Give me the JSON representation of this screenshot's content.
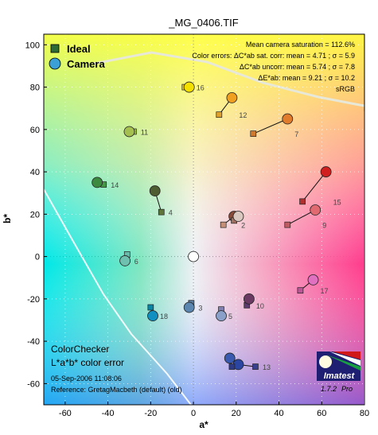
{
  "chart_data": {
    "type": "scatter",
    "title": "_MG_0406.TIF",
    "xlabel": "a*",
    "ylabel": "b*",
    "xlim": [
      -70,
      80
    ],
    "ylim": [
      -70,
      105
    ],
    "xticks": [
      -60,
      -40,
      -20,
      0,
      20,
      40,
      60,
      80
    ],
    "yticks": [
      -60,
      -40,
      -20,
      0,
      20,
      40,
      60,
      80,
      100
    ],
    "xtick_labels": [
      "-60",
      "-40",
      "-20",
      "0",
      "20",
      "40",
      "60",
      "80"
    ],
    "ytick_labels": [
      "-60",
      "-40",
      "-20",
      "0",
      "20",
      "40",
      "60",
      "80",
      "100"
    ],
    "grid": true,
    "legend_position": "top-left",
    "legend": [
      {
        "name": "Ideal",
        "marker": "square",
        "color": "#2e6b35"
      },
      {
        "name": "Camera",
        "marker": "circle",
        "color": "#3aa0d6"
      }
    ],
    "stats_lines": [
      "Mean camera saturation = 112.6%",
      "Color errors:  ΔC*ab sat. corr:  mean = 4.71  ;  σ = 5.9",
      "ΔC*ab uncorr:  mean = 5.74  ;  σ = 7.8",
      "ΔE*ab:  mean = 9.21  ;  σ = 10.2",
      "sRGB"
    ],
    "bottom_title_1": "ColorChecker",
    "bottom_title_2": "L*a*b* color error",
    "date_text": "05-Sep-2006 11:08:06",
    "reference_text": "Reference: GretagMacbeth (default) (old)",
    "logo_text": "Imatest",
    "version_text": "1.7.2",
    "version_suffix": "Pro",
    "patches": [
      {
        "id": "2",
        "ideal": [
          14,
          15
        ],
        "camera": [
          19,
          19
        ],
        "ideal_color": "#c49078",
        "camera_color": "#8a4b3a"
      },
      {
        "id": "4",
        "ideal": [
          -15,
          21
        ],
        "camera": [
          -18,
          31
        ],
        "ideal_color": "#5f7438",
        "camera_color": "#4f5e32"
      },
      {
        "id": "5",
        "ideal": [
          13,
          -25
        ],
        "camera": [
          13,
          -28
        ],
        "ideal_color": "#8080b0",
        "camera_color": "#8aa0c8"
      },
      {
        "id": "6",
        "ideal": [
          -31,
          1
        ],
        "camera": [
          -32,
          -2
        ],
        "ideal_color": "#66bbaa",
        "camera_color": "#70c0b0"
      },
      {
        "id": "7",
        "ideal": [
          28,
          58
        ],
        "camera": [
          44,
          65
        ],
        "ideal_color": "#d07a30",
        "camera_color": "#e07c2c"
      },
      {
        "id": "9",
        "ideal": [
          44,
          15
        ],
        "camera": [
          57,
          22
        ],
        "ideal_color": "#c05a62",
        "camera_color": "#e06a70"
      },
      {
        "id": "10",
        "ideal": [
          25,
          -23
        ],
        "camera": [
          26,
          -20
        ],
        "ideal_color": "#5c3c6c",
        "camera_color": "#6a3a62"
      },
      {
        "id": "11",
        "ideal": [
          -28,
          59
        ],
        "camera": [
          -30,
          59
        ],
        "ideal_color": "#9abc40",
        "camera_color": "#a6c050"
      },
      {
        "id": "12",
        "ideal": [
          12,
          67
        ],
        "camera": [
          18,
          75
        ],
        "ideal_color": "#e0a02a",
        "camera_color": "#f0a020"
      },
      {
        "id": "13",
        "ideal": [
          29,
          -52
        ],
        "camera": [
          21,
          -51
        ],
        "ideal_color": "#38408e",
        "camera_color": "#2a46a0"
      },
      {
        "id": "14",
        "ideal": [
          -42,
          34
        ],
        "camera": [
          -45,
          35
        ],
        "ideal_color": "#469648",
        "camera_color": "#3c8a40"
      },
      {
        "id": "15",
        "ideal": [
          51,
          26
        ],
        "camera": [
          62,
          40
        ],
        "ideal_color": "#b03030",
        "camera_color": "#d02020"
      },
      {
        "id": "16",
        "ideal": [
          -4,
          80
        ],
        "camera": [
          -2,
          80
        ],
        "ideal_color": "#e6c81e",
        "camera_color": "#f4e000"
      },
      {
        "id": "17",
        "ideal": [
          50,
          -16
        ],
        "camera": [
          56,
          -11
        ],
        "ideal_color": "#bc5696",
        "camera_color": "#e070c0"
      },
      {
        "id": "18",
        "ideal": [
          -20,
          -24
        ],
        "camera": [
          -19,
          -28
        ],
        "ideal_color": "#0886a4",
        "camera_color": "#1090c0"
      },
      {
        "id": "3",
        "ideal": [
          -1,
          -22
        ],
        "camera": [
          -2,
          -24
        ],
        "ideal_color": "#5a7a9c",
        "camera_color": "#5a86b0"
      },
      {
        "id": "",
        "ideal": [
          19,
          17
        ],
        "camera": [
          21,
          19
        ],
        "ideal_color": "#a07060",
        "camera_color": "#d8c8c0"
      },
      {
        "id": "",
        "ideal": [
          18,
          -52
        ],
        "camera": [
          17,
          -48
        ],
        "ideal_color": "#2e3a86",
        "camera_color": "#3a5ab0"
      },
      {
        "id": "",
        "ideal": [
          0,
          0
        ],
        "camera": [
          0,
          0
        ],
        "ideal_color": "#ffffff",
        "camera_color": "#ffffff"
      }
    ]
  }
}
